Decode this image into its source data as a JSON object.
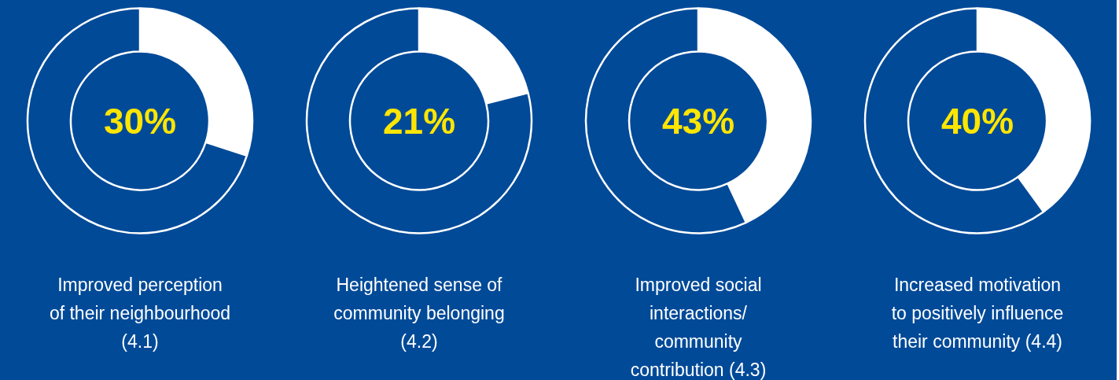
{
  "chart_data": [
    {
      "type": "donut",
      "title": "Improved perception\nof their neighbourhood\n(4.1)",
      "categories": [
        null,
        null
      ],
      "values": [
        30,
        70
      ],
      "colors": [
        "#ffffff",
        "#004a98"
      ],
      "value_labels": [
        "30%",
        null
      ]
    },
    {
      "type": "donut",
      "title": "Heightened sense of\ncommunity belonging\n(4.2)",
      "categories": [
        null,
        null
      ],
      "values": [
        21,
        79
      ],
      "colors": [
        "#ffffff",
        "#004a98"
      ],
      "value_labels": [
        "21%",
        null
      ]
    },
    {
      "type": "donut",
      "title": "Improved social\ninteractions/\ncommunity\ncontribution (4.3)",
      "categories": [
        null,
        null
      ],
      "values": [
        43,
        57
      ],
      "colors": [
        "#ffffff",
        "#004a98"
      ],
      "value_labels": [
        "43%",
        null
      ]
    },
    {
      "type": "donut",
      "title": "Increased motivation\nto positively influence\ntheir community (4.4)",
      "categories": [
        null,
        null
      ],
      "values": [
        40,
        60
      ],
      "colors": [
        "#ffffff",
        "#004a98"
      ],
      "value_labels": [
        "40%",
        null
      ]
    }
  ]
}
